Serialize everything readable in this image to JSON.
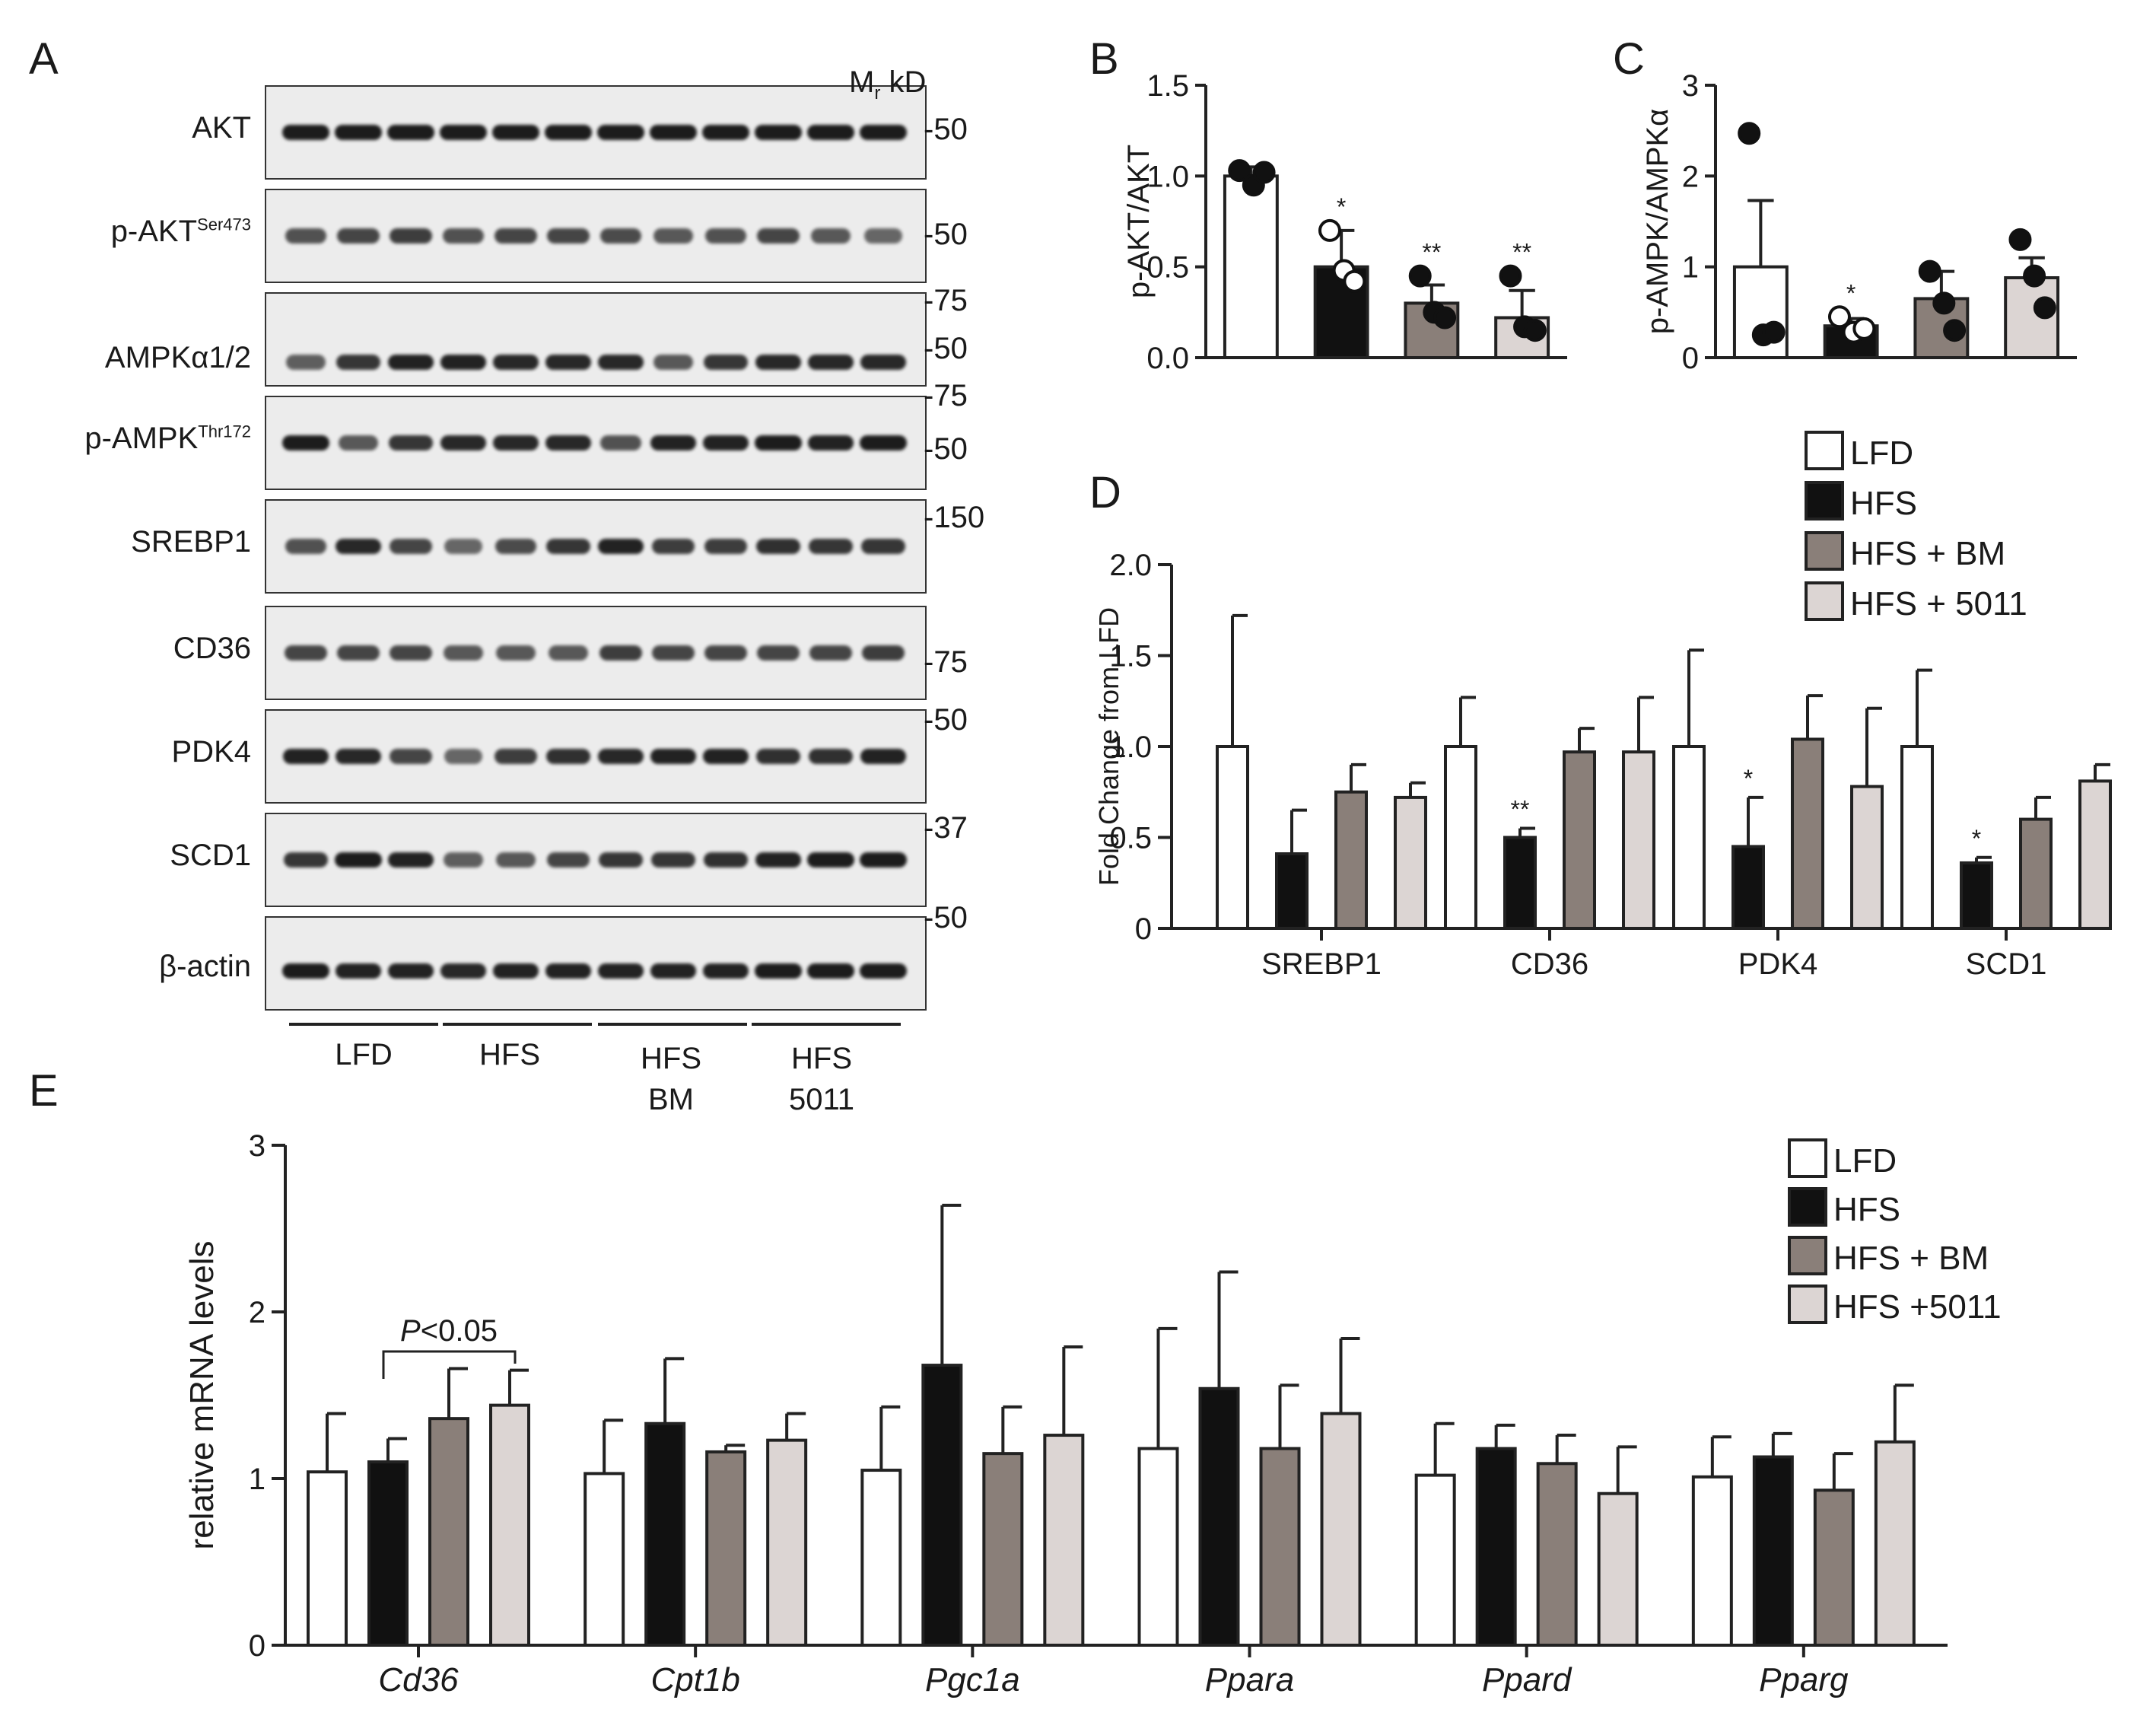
{
  "panel_letters": {
    "a": "A",
    "b": "B",
    "c": "C",
    "d": "D",
    "e": "E"
  },
  "western_blot": {
    "mw_header_m": "M",
    "mw_header_r": "r",
    "mw_header_kd": "kD",
    "rows": [
      {
        "label": "AKT",
        "sup": "",
        "mw": [
          "-50"
        ]
      },
      {
        "label": "p-AKT",
        "sup": "Ser473",
        "mw": [
          "-50"
        ]
      },
      {
        "label": "AMPKα1/2",
        "sup": "",
        "mw": [
          "-75",
          "-50"
        ]
      },
      {
        "label": "p-AMPK",
        "sup": "Thr172",
        "mw": [
          "-75",
          "-50"
        ]
      },
      {
        "label": "SREBP1",
        "sup": "",
        "mw": [
          "-150"
        ]
      },
      {
        "label": "CD36",
        "sup": "",
        "mw": [
          "-75"
        ]
      },
      {
        "label": "PDK4",
        "sup": "",
        "mw": [
          "-50"
        ]
      },
      {
        "label": "SCD1",
        "sup": "",
        "mw": [
          "-37"
        ]
      },
      {
        "label": "β-actin",
        "sup": "",
        "mw": [
          "-50"
        ]
      }
    ],
    "groups": [
      {
        "line1": "LFD",
        "line2": ""
      },
      {
        "line1": "HFS",
        "line2": ""
      },
      {
        "line1": "HFS",
        "line2": "BM"
      },
      {
        "line1": "HFS",
        "line2": "5011"
      }
    ]
  },
  "legend_d": [
    "LFD",
    "HFS",
    "HFS + BM",
    "HFS + 5011"
  ],
  "legend_e": [
    "LFD",
    "HFS",
    "HFS + BM",
    "HFS +5011"
  ],
  "colors": {
    "lfd": "#ffffff",
    "hfs": "#111111",
    "hfs_bm": "#8a7f79",
    "hfs_5011": "#dcd5d3",
    "axis": "#222222"
  },
  "chart_data": [
    {
      "panel": "B",
      "type": "bar",
      "ylabel": "p-AKT/AKT",
      "ylim": [
        0,
        1.5
      ],
      "yticks": [
        0.0,
        0.5,
        1.0,
        1.5
      ],
      "yticklabels": [
        "0.0",
        "0.5",
        "1.0",
        "1.5"
      ],
      "groups": [
        "LFD",
        "HFS",
        "HFS + BM",
        "HFS + 5011"
      ],
      "values": [
        1.0,
        0.5,
        0.3,
        0.22
      ],
      "errors": [
        0.05,
        0.2,
        0.1,
        0.15
      ],
      "points": [
        [
          1.03,
          0.95,
          1.02
        ],
        [
          0.7,
          0.48,
          0.42
        ],
        [
          0.45,
          0.25,
          0.22
        ],
        [
          0.45,
          0.17,
          0.15
        ]
      ],
      "significance": [
        "",
        "*",
        "**",
        "**"
      ]
    },
    {
      "panel": "C",
      "type": "bar",
      "ylabel": "p-AMPK/AMPKα",
      "ylim": [
        0,
        3
      ],
      "yticks": [
        0,
        1,
        2,
        3
      ],
      "yticklabels": [
        "0",
        "1",
        "2",
        "3"
      ],
      "groups": [
        "LFD",
        "HFS",
        "HFS + BM",
        "HFS + 5011"
      ],
      "values": [
        1.0,
        0.35,
        0.65,
        0.88
      ],
      "errors": [
        0.73,
        0.08,
        0.3,
        0.22
      ],
      "points": [
        [
          2.47,
          0.25,
          0.28
        ],
        [
          0.45,
          0.28,
          0.32
        ],
        [
          0.95,
          0.6,
          0.3
        ],
        [
          1.3,
          0.9,
          0.55
        ]
      ],
      "significance": [
        "",
        "*",
        "",
        ""
      ]
    },
    {
      "panel": "D",
      "type": "bar",
      "ylabel": "Fold Change from LFD",
      "ylim": [
        0,
        2.0
      ],
      "yticks": [
        0,
        0.5,
        1.0,
        1.5,
        2.0
      ],
      "yticklabels": [
        "0",
        "0.5",
        "1.0",
        "1.5",
        "2.0"
      ],
      "categories": [
        "SREBP1",
        "CD36",
        "PDK4",
        "SCD1"
      ],
      "series": [
        {
          "name": "LFD",
          "values": [
            1.0,
            1.0,
            1.0,
            1.0
          ],
          "errors": [
            0.72,
            0.27,
            0.53,
            0.42
          ],
          "significance": [
            "",
            "",
            "",
            ""
          ]
        },
        {
          "name": "HFS",
          "values": [
            0.41,
            0.5,
            0.45,
            0.36
          ],
          "errors": [
            0.24,
            0.05,
            0.27,
            0.03
          ],
          "significance": [
            "",
            "**",
            "*",
            "*"
          ]
        },
        {
          "name": "HFS + BM",
          "values": [
            0.75,
            0.97,
            1.04,
            0.6
          ],
          "errors": [
            0.15,
            0.13,
            0.24,
            0.12
          ],
          "significance": [
            "",
            "",
            "",
            ""
          ]
        },
        {
          "name": "HFS + 5011",
          "values": [
            0.72,
            0.97,
            0.78,
            0.81
          ],
          "errors": [
            0.08,
            0.3,
            0.43,
            0.09
          ],
          "significance": [
            "",
            "",
            "",
            ""
          ]
        }
      ]
    },
    {
      "panel": "E",
      "type": "bar",
      "ylabel": "relative mRNA levels",
      "ylim": [
        0,
        3
      ],
      "yticks": [
        0,
        1,
        2,
        3
      ],
      "yticklabels": [
        "0",
        "1",
        "2",
        "3"
      ],
      "categories": [
        "Cd36",
        "Cpt1b",
        "Pgc1a",
        "Ppara",
        "Ppard",
        "Pparg"
      ],
      "series": [
        {
          "name": "LFD",
          "values": [
            1.04,
            1.03,
            1.05,
            1.18,
            1.02,
            1.01
          ],
          "errors": [
            0.35,
            0.32,
            0.38,
            0.72,
            0.31,
            0.24
          ]
        },
        {
          "name": "HFS",
          "values": [
            1.1,
            1.33,
            1.68,
            1.54,
            1.18,
            1.13
          ],
          "errors": [
            0.14,
            0.39,
            0.96,
            0.7,
            0.14,
            0.14
          ]
        },
        {
          "name": "HFS + BM",
          "values": [
            1.36,
            1.16,
            1.15,
            1.18,
            1.09,
            0.93
          ],
          "errors": [
            0.3,
            0.04,
            0.28,
            0.38,
            0.17,
            0.22
          ]
        },
        {
          "name": "HFS +5011",
          "values": [
            1.44,
            1.23,
            1.26,
            1.39,
            0.91,
            1.22
          ],
          "errors": [
            0.21,
            0.16,
            0.53,
            0.45,
            0.28,
            0.34
          ]
        }
      ],
      "annotation": {
        "text_italic": "P",
        "text": "<0.05"
      }
    }
  ]
}
